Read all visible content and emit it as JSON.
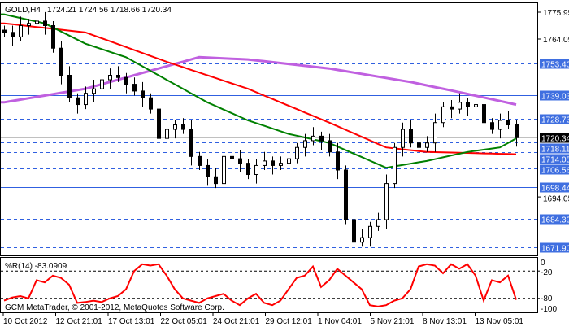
{
  "header": {
    "symbol": "GOLD,H4",
    "ohlc": "1724.21 1724.56 1718.66 1720.34"
  },
  "indicator": {
    "label": "%R(14) -83.0909",
    "levels": [
      "0",
      "-20",
      "-80",
      "-100"
    ]
  },
  "copyright": "GCM MetaTrader, © 2001-2012, MetaQuotes Software Corp.",
  "colors": {
    "bull": "#000000",
    "bear": "#000000",
    "ma_fast": "#008000",
    "ma_mid": "#ff0000",
    "ma_slow": "#c060e0",
    "level_line": "#3060e0",
    "label_bg": "#3f6fe0",
    "wpr": "#ff0000"
  },
  "chart_data": {
    "type": "candlestick",
    "title": "GOLD,H4",
    "ylim": [
      1670,
      1780
    ],
    "price_ticks": [
      "1775.95",
      "1764.05",
      "1694.05"
    ],
    "levels": [
      {
        "value": 1753.4,
        "label": "1753.40",
        "style": "dashed"
      },
      {
        "value": 1739.03,
        "label": "1739.03",
        "style": "solid"
      },
      {
        "value": 1728.73,
        "label": "1728.73",
        "style": "dashed"
      },
      {
        "value": 1718.11,
        "label": "1718.11",
        "style": "dashed"
      },
      {
        "value": 1714.05,
        "label": "1714.05",
        "style": "dashed"
      },
      {
        "value": 1706.56,
        "label": "1706.56",
        "style": "dashed"
      },
      {
        "value": 1698.44,
        "label": "1698.44",
        "style": "solid"
      },
      {
        "value": 1684.39,
        "label": "1684.39",
        "style": "dashed"
      },
      {
        "value": 1671.9,
        "label": "1671.90",
        "style": "dashed"
      }
    ],
    "current_price": {
      "value": 1720.34,
      "label": "1720.34"
    },
    "x_labels": [
      "10 Oct 2012",
      "12 Oct 21:01",
      "17 Oct 13:01",
      "22 Oct 05:01",
      "24 Oct 21:01",
      "29 Oct 12:01",
      "1 Nov 04:01",
      "5 Nov 21:01",
      "8 Nov 13:01",
      "13 Nov 05:01"
    ],
    "closes": [
      1767,
      1765,
      1770,
      1771,
      1772,
      1770,
      1760,
      1748,
      1738,
      1735,
      1740,
      1742,
      1746,
      1748,
      1747,
      1744,
      1741,
      1738,
      1733,
      1720,
      1724,
      1726,
      1724,
      1712,
      1708,
      1703,
      1700,
      1712,
      1711,
      1709,
      1704,
      1708,
      1710,
      1708,
      1709,
      1711,
      1716,
      1719,
      1721,
      1719,
      1714,
      1706,
      1684,
      1674,
      1676,
      1681,
      1684,
      1700,
      1716,
      1724,
      1718,
      1716,
      1718,
      1727,
      1734,
      1733,
      1736,
      1734,
      1735,
      1727,
      1724,
      1728,
      1726,
      1720.34
    ],
    "ma_slow": [
      [
        0,
        1736
      ],
      [
        10,
        1742
      ],
      [
        20,
        1752
      ],
      [
        24,
        1756
      ],
      [
        30,
        1755
      ],
      [
        40,
        1751
      ],
      [
        50,
        1745
      ],
      [
        56,
        1740.5
      ],
      [
        63,
        1735
      ]
    ],
    "ma_mid": [
      [
        0,
        1771
      ],
      [
        10,
        1767
      ],
      [
        20,
        1754
      ],
      [
        30,
        1742
      ],
      [
        40,
        1727
      ],
      [
        47,
        1716
      ],
      [
        52,
        1714
      ],
      [
        63,
        1713
      ]
    ],
    "ma_fast": [
      [
        0,
        1775
      ],
      [
        5,
        1771
      ],
      [
        10,
        1762
      ],
      [
        15,
        1756
      ],
      [
        20,
        1746
      ],
      [
        25,
        1736
      ],
      [
        30,
        1728
      ],
      [
        35,
        1722
      ],
      [
        40,
        1718
      ],
      [
        47,
        1707
      ],
      [
        52,
        1710
      ],
      [
        57,
        1714
      ],
      [
        61,
        1716
      ],
      [
        63,
        1720
      ]
    ],
    "wpr": [
      -85,
      -78,
      -75,
      -80,
      -40,
      -45,
      -30,
      -35,
      -50,
      -90,
      -88,
      -85,
      -88,
      -80,
      -75,
      -60,
      -20,
      -5,
      -8,
      -5,
      -30,
      -60,
      -80,
      -85,
      -90,
      -80,
      -75,
      -70,
      -85,
      -95,
      -80,
      -70,
      -90,
      -95,
      -85,
      -60,
      -35,
      -30,
      -10,
      -55,
      -40,
      -15,
      -30,
      -45,
      -60,
      -95,
      -98,
      -95,
      -85,
      -80,
      -60,
      -10,
      -5,
      -8,
      -25,
      -5,
      -15,
      -5,
      -30,
      -85,
      -40,
      -45,
      -30,
      -83
    ]
  }
}
